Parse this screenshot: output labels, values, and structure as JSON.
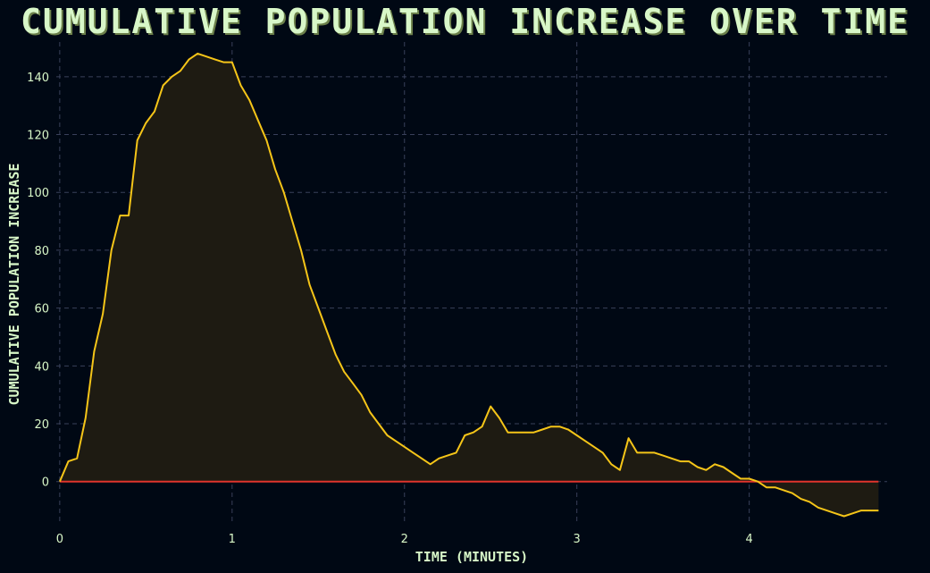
{
  "chart_data": {
    "type": "area",
    "title": "CUMULATIVE POPULATION INCREASE OVER TIME",
    "xlabel": "TIME (MINUTES)",
    "ylabel": "CUMULATIVE POPULATION INCREASE",
    "xlim": [
      -0.02,
      4.8
    ],
    "ylim": [
      -14,
      152
    ],
    "xticks": [
      0,
      1,
      2,
      3,
      4
    ],
    "yticks": [
      0,
      20,
      40,
      60,
      80,
      100,
      120,
      140
    ],
    "grid": true,
    "reference_line": 0,
    "colors": {
      "line": "#f5c518",
      "fill": "#1e1b12",
      "zero_line": "#e0342c",
      "text": "#d8f7c8",
      "background": "#000814",
      "grid": "#39405a"
    },
    "series": [
      {
        "x": [
          0,
          0.05,
          0.1,
          0.15,
          0.2,
          0.25,
          0.3,
          0.35,
          0.4,
          0.45,
          0.5,
          0.55,
          0.6,
          0.65,
          0.7,
          0.75,
          0.8,
          0.85,
          0.9,
          0.95,
          1.0,
          1.05,
          1.1,
          1.15,
          1.2,
          1.25,
          1.3,
          1.35,
          1.4,
          1.45,
          1.5,
          1.55,
          1.6,
          1.65,
          1.7,
          1.75,
          1.8,
          1.85,
          1.9,
          1.95,
          2.0,
          2.05,
          2.1,
          2.15,
          2.2,
          2.25,
          2.3,
          2.35,
          2.4,
          2.45,
          2.5,
          2.55,
          2.6,
          2.65,
          2.7,
          2.75,
          2.8,
          2.85,
          2.9,
          2.95,
          3.0,
          3.05,
          3.1,
          3.15,
          3.2,
          3.25,
          3.3,
          3.35,
          3.4,
          3.45,
          3.5,
          3.55,
          3.6,
          3.65,
          3.7,
          3.75,
          3.8,
          3.85,
          3.9,
          3.95,
          4.0,
          4.05,
          4.1,
          4.15,
          4.2,
          4.25,
          4.3,
          4.35,
          4.4,
          4.45,
          4.5,
          4.55,
          4.6,
          4.65,
          4.7,
          4.75
        ],
        "values": [
          0,
          7,
          8,
          22,
          45,
          58,
          80,
          92,
          92,
          118,
          124,
          128,
          137,
          140,
          142,
          146,
          148,
          147,
          146,
          145,
          145,
          137,
          132,
          125,
          118,
          108,
          100,
          90,
          80,
          68,
          60,
          52,
          44,
          38,
          34,
          30,
          24,
          20,
          16,
          14,
          12,
          10,
          8,
          6,
          8,
          9,
          10,
          16,
          17,
          19,
          26,
          22,
          17,
          17,
          17,
          17,
          18,
          19,
          19,
          18,
          16,
          14,
          12,
          10,
          6,
          4,
          15,
          10,
          10,
          10,
          9,
          8,
          7,
          7,
          5,
          4,
          6,
          5,
          3,
          1,
          1,
          0,
          -2,
          -2,
          -3,
          -4,
          -6,
          -7,
          -9,
          -10,
          -11,
          -12,
          -11,
          -10,
          -10,
          -10
        ]
      }
    ]
  }
}
